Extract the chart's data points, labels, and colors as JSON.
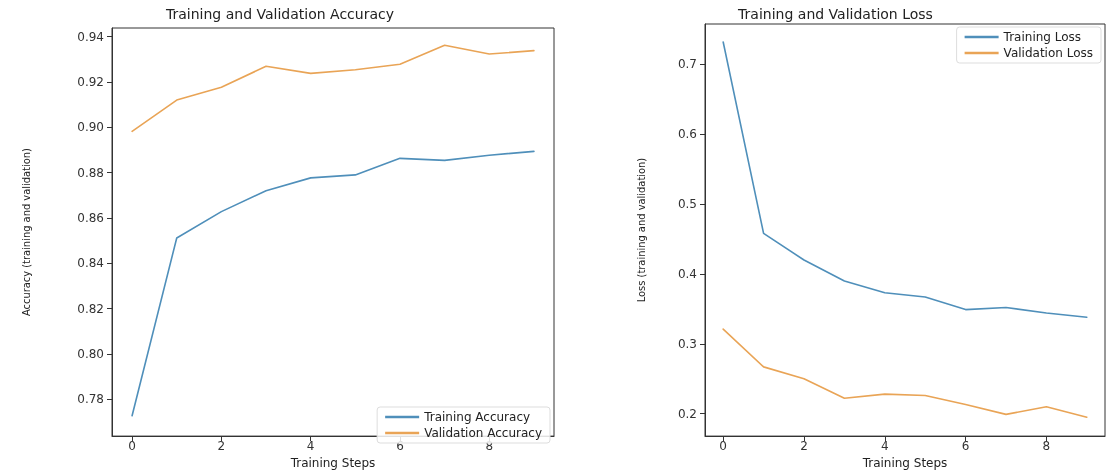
{
  "chart_data": [
    {
      "type": "line",
      "title": "Training and Validation Accuracy",
      "xlabel": "Training Steps",
      "ylabel": "Accuracy (training and validation)",
      "x": [
        0,
        1,
        2,
        3,
        4,
        5,
        6,
        7,
        8,
        9
      ],
      "series": [
        {
          "name": "Training Accuracy",
          "color": "#4f8fba",
          "values": [
            0.7728,
            0.8512,
            0.8628,
            0.872,
            0.8777,
            0.879,
            0.8863,
            0.8854,
            0.8877,
            0.8894
          ]
        },
        {
          "name": "Validation Accuracy",
          "color": "#e9a456",
          "values": [
            0.8982,
            0.912,
            0.9177,
            0.9269,
            0.9238,
            0.9254,
            0.9278,
            0.9362,
            0.9323,
            0.9338
          ]
        }
      ],
      "xlim": [
        -0.45,
        9.45
      ],
      "xticks": [
        0,
        2,
        4,
        6,
        8
      ],
      "ylim": [
        0.7638,
        0.9438
      ],
      "yticks": [
        {
          "value": 0.78,
          "label": "0.78"
        },
        {
          "value": 0.8,
          "label": "0.80"
        },
        {
          "value": 0.82,
          "label": "0.82"
        },
        {
          "value": 0.84,
          "label": "0.84"
        },
        {
          "value": 0.86,
          "label": "0.86"
        },
        {
          "value": 0.88,
          "label": "0.88"
        },
        {
          "value": 0.9,
          "label": "0.90"
        },
        {
          "value": 0.92,
          "label": "0.92"
        },
        {
          "value": 0.94,
          "label": "0.94"
        }
      ],
      "legend": "bottom right",
      "grid": false
    },
    {
      "type": "line",
      "title": "Training and Validation Loss",
      "xlabel": "Training Steps",
      "ylabel": "Loss (training and validation)",
      "x": [
        0,
        1,
        2,
        3,
        4,
        5,
        6,
        7,
        8,
        9
      ],
      "series": [
        {
          "name": "Training Loss",
          "color": "#4f8fba",
          "values": [
            0.732,
            0.458,
            0.42,
            0.39,
            0.373,
            0.367,
            0.349,
            0.352,
            0.344,
            0.338
          ]
        },
        {
          "name": "Validation Loss",
          "color": "#e9a456",
          "values": [
            0.321,
            0.267,
            0.25,
            0.222,
            0.228,
            0.226,
            0.213,
            0.199,
            0.21,
            0.195
          ]
        }
      ],
      "xlim": [
        -0.45,
        9.45
      ],
      "xticks": [
        0,
        2,
        4,
        6,
        8
      ],
      "ylim": [
        0.1679,
        0.7578
      ],
      "yticks": [
        0.2,
        0.3,
        0.4,
        0.5,
        0.6,
        0.7
      ],
      "legend": "top right",
      "grid": false
    }
  ]
}
